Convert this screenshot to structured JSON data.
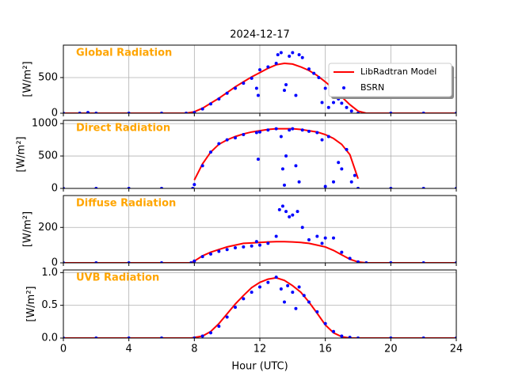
{
  "chart_data": [
    {
      "type": "line",
      "title": "2024-12-17",
      "label": "Global Radiation",
      "y_label": "[W/m²]",
      "xlim": [
        0,
        24
      ],
      "xticks": [
        0,
        4,
        8,
        12,
        16,
        20,
        24
      ],
      "ylim": [
        0,
        955
      ],
      "yticks": [
        0,
        500
      ],
      "grid": true,
      "legend": "upper right",
      "series": [
        {
          "name": "LibRadtran Model",
          "style": "line",
          "color": "#ff0000",
          "x": [
            0,
            7.5,
            8,
            8.5,
            9,
            9.5,
            10,
            10.5,
            11,
            11.5,
            12,
            12.5,
            13,
            13.5,
            14,
            14.5,
            15,
            15.5,
            16,
            16.5,
            17,
            17.5,
            18,
            18.5,
            24
          ],
          "values": [
            0,
            0,
            20,
            70,
            140,
            210,
            290,
            370,
            440,
            510,
            570,
            630,
            680,
            700,
            690,
            650,
            600,
            530,
            440,
            340,
            230,
            120,
            30,
            0,
            0
          ]
        },
        {
          "name": "BSRN",
          "style": "points",
          "color": "#0000ff",
          "x": [
            0,
            1,
            1.5,
            2,
            4,
            6,
            7.5,
            8,
            8.5,
            9,
            9.5,
            10,
            10.5,
            11,
            11.5,
            11.8,
            11.9,
            12,
            12.5,
            13,
            13.1,
            13.3,
            13.5,
            13.6,
            13.8,
            14,
            14.2,
            14.4,
            14.6,
            15,
            15.3,
            15.6,
            15.8,
            16,
            16.2,
            16.5,
            16.8,
            17,
            17.3,
            17.6,
            18,
            20,
            22,
            24
          ],
          "values": [
            0,
            0,
            10,
            0,
            0,
            0,
            0,
            10,
            60,
            130,
            200,
            280,
            350,
            420,
            490,
            350,
            250,
            610,
            650,
            700,
            820,
            850,
            320,
            400,
            800,
            850,
            250,
            820,
            780,
            620,
            560,
            500,
            150,
            350,
            80,
            150,
            200,
            140,
            80,
            30,
            0,
            0,
            0,
            0
          ]
        }
      ]
    },
    {
      "type": "line",
      "label": "Direct Radiation",
      "y_label": "[W/m²]",
      "xlim": [
        0,
        24
      ],
      "xticks": [
        0,
        4,
        8,
        12,
        16,
        20,
        24
      ],
      "ylim": [
        0,
        1050
      ],
      "yticks": [
        0,
        500,
        1000
      ],
      "grid": true,
      "series": [
        {
          "style": "line",
          "color": "#ff0000",
          "x": [
            8,
            8.5,
            9,
            9.5,
            10,
            10.5,
            11,
            11.5,
            12,
            12.5,
            13,
            13.5,
            14,
            14.5,
            15,
            15.5,
            16,
            16.5,
            17,
            17.5,
            18
          ],
          "values": [
            130,
            380,
            560,
            680,
            750,
            800,
            840,
            870,
            890,
            910,
            920,
            920,
            920,
            910,
            890,
            870,
            830,
            770,
            680,
            520,
            150
          ]
        },
        {
          "style": "points",
          "color": "#0000ff",
          "x": [
            0,
            2,
            4,
            6,
            7.9,
            8,
            8.5,
            9,
            9.5,
            10,
            10.5,
            11,
            11.8,
            11.9,
            12,
            12.5,
            13,
            13.3,
            13.4,
            13.5,
            13.6,
            13.8,
            14,
            14.2,
            14.4,
            14.6,
            15,
            15.5,
            15.8,
            16,
            16.2,
            16.5,
            16.8,
            17,
            17.3,
            17.6,
            17.8,
            18,
            20,
            22,
            24
          ],
          "values": [
            0,
            0,
            0,
            0,
            0,
            60,
            350,
            560,
            690,
            750,
            780,
            830,
            860,
            450,
            870,
            900,
            920,
            800,
            300,
            50,
            500,
            900,
            920,
            350,
            100,
            900,
            880,
            860,
            750,
            30,
            800,
            100,
            400,
            300,
            600,
            100,
            200,
            0,
            0,
            0,
            0
          ]
        }
      ]
    },
    {
      "type": "line",
      "label": "Diffuse Radiation",
      "y_label": "[W/m²]",
      "xlim": [
        0,
        24
      ],
      "xticks": [
        0,
        4,
        8,
        12,
        16,
        20,
        24
      ],
      "ylim": [
        0,
        380
      ],
      "yticks": [
        0,
        200
      ],
      "grid": true,
      "series": [
        {
          "style": "line",
          "color": "#ff0000",
          "x": [
            0,
            7.8,
            8,
            8.5,
            9,
            9.5,
            10,
            10.5,
            11,
            11.5,
            12,
            12.5,
            13,
            13.5,
            14,
            14.5,
            15,
            15.5,
            16,
            16.5,
            17,
            17.5,
            18,
            18.5,
            24
          ],
          "values": [
            0,
            0,
            10,
            40,
            60,
            75,
            90,
            100,
            110,
            112,
            115,
            118,
            120,
            120,
            118,
            115,
            110,
            100,
            90,
            70,
            45,
            20,
            5,
            0,
            0
          ]
        },
        {
          "style": "points",
          "color": "#0000ff",
          "x": [
            0,
            2,
            4,
            6,
            7.8,
            8,
            8.5,
            9,
            9.5,
            10,
            10.5,
            11,
            11.5,
            11.8,
            12,
            12.5,
            13,
            13.2,
            13.4,
            13.6,
            13.8,
            14,
            14.3,
            14.6,
            15,
            15.5,
            15.8,
            16,
            16.5,
            17,
            17.5,
            18,
            18.5,
            20,
            22,
            24
          ],
          "values": [
            0,
            0,
            0,
            0,
            0,
            10,
            35,
            50,
            65,
            75,
            85,
            90,
            95,
            120,
            100,
            110,
            150,
            300,
            320,
            290,
            260,
            270,
            290,
            200,
            130,
            150,
            110,
            140,
            140,
            60,
            25,
            5,
            0,
            0,
            0,
            0
          ]
        }
      ]
    },
    {
      "type": "line",
      "label": "UVB Radiation",
      "y_label": "[W/m²]",
      "x_label": "Hour (UTC)",
      "xlim": [
        0,
        24
      ],
      "xticks": [
        0,
        4,
        8,
        12,
        16,
        20,
        24
      ],
      "ylim": [
        0,
        1.04
      ],
      "yticks": [
        {
          "value": 0,
          "label": "0.0"
        },
        0.5,
        {
          "value": 1,
          "label": "1.0"
        }
      ],
      "grid": true,
      "series": [
        {
          "style": "line",
          "color": "#ff0000",
          "x": [
            0,
            7.8,
            8.5,
            9,
            9.5,
            10,
            10.5,
            11,
            11.5,
            12,
            12.5,
            13,
            13.5,
            14,
            14.5,
            15,
            15.5,
            16,
            16.5,
            17,
            17.5,
            24
          ],
          "values": [
            0,
            0,
            0.03,
            0.1,
            0.22,
            0.37,
            0.52,
            0.65,
            0.77,
            0.85,
            0.9,
            0.92,
            0.88,
            0.8,
            0.7,
            0.55,
            0.38,
            0.2,
            0.08,
            0.02,
            0,
            0
          ]
        },
        {
          "style": "points",
          "color": "#0000ff",
          "x": [
            0,
            2,
            4,
            6,
            8,
            8.5,
            9,
            9.5,
            10,
            10.5,
            11,
            11.5,
            12,
            12.5,
            13,
            13.3,
            13.5,
            13.7,
            14,
            14.2,
            14.4,
            14.7,
            15,
            15.5,
            16,
            16.5,
            17,
            17.5,
            18,
            20,
            22,
            24
          ],
          "values": [
            0,
            0,
            0,
            0,
            0,
            0.03,
            0.08,
            0.18,
            0.32,
            0.47,
            0.6,
            0.7,
            0.78,
            0.85,
            0.93,
            0.75,
            0.55,
            0.8,
            0.7,
            0.45,
            0.78,
            0.65,
            0.55,
            0.4,
            0.22,
            0.1,
            0.03,
            0.01,
            0,
            0,
            0,
            0
          ]
        }
      ]
    }
  ]
}
